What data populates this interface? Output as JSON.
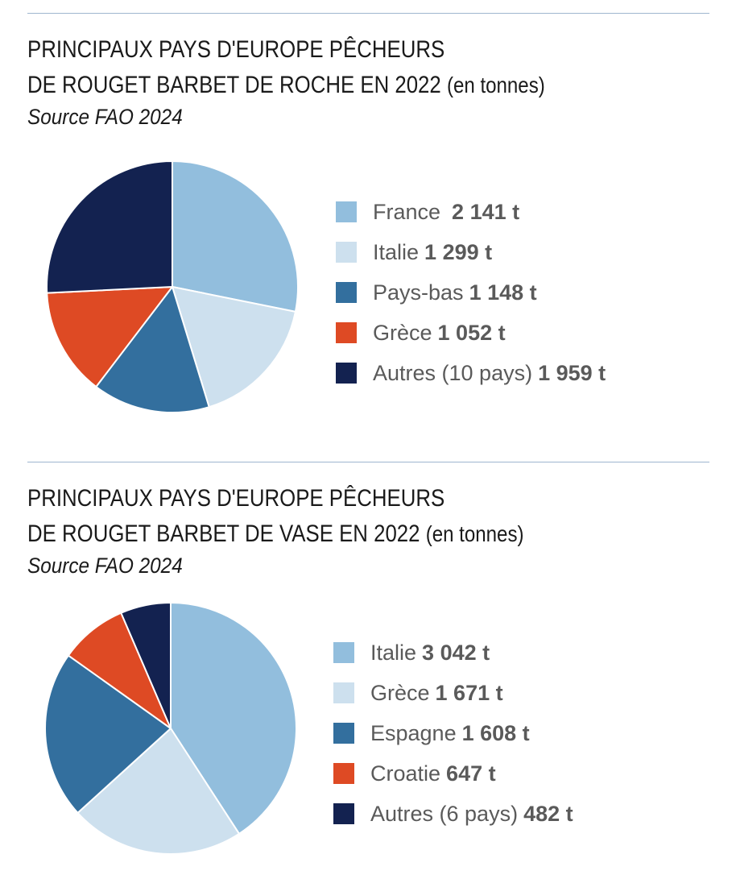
{
  "charts": [
    {
      "title_line1": "PRINCIPAUX PAYS D'EUROPE PÊCHEURS",
      "title_line2": "DE ROUGET BARBET DE ROCHE EN 2022",
      "title_unit": "(en tonnes)",
      "source": "Source FAO 2024",
      "legend": [
        {
          "label": "France",
          "value": "2 141 t"
        },
        {
          "label": "Italie",
          "value": "1 299 t"
        },
        {
          "label": "Pays-bas",
          "value": "1 148 t"
        },
        {
          "label": "Grèce",
          "value": "1 052 t"
        },
        {
          "label": "Autres (10 pays)",
          "value": "1 959 t"
        }
      ]
    },
    {
      "title_line1": "PRINCIPAUX PAYS D'EUROPE PÊCHEURS",
      "title_line2": "DE ROUGET BARBET DE VASE EN 2022",
      "title_unit": "(en tonnes)",
      "source": "Source FAO 2024",
      "legend": [
        {
          "label": "Italie",
          "value": "3 042 t"
        },
        {
          "label": "Grèce",
          "value": "1 671 t"
        },
        {
          "label": "Espagne",
          "value": "1 608 t"
        },
        {
          "label": "Croatie",
          "value": "647 t"
        },
        {
          "label": "Autres (6 pays)",
          "value": "482 t"
        }
      ]
    }
  ],
  "chart_data": [
    {
      "type": "pie",
      "title": "PRINCIPAUX PAYS D'EUROPE PÊCHEURS DE ROUGET BARBET DE ROCHE EN 2022 (en tonnes)",
      "unit": "t",
      "categories": [
        "France",
        "Italie",
        "Pays-bas",
        "Grèce",
        "Autres (10 pays)"
      ],
      "values": [
        2141,
        1299,
        1148,
        1052,
        1959
      ],
      "colors": [
        "#92bedd",
        "#cde0ee",
        "#336f9e",
        "#de4a24",
        "#132250"
      ],
      "legend_position": "right"
    },
    {
      "type": "pie",
      "title": "PRINCIPAUX PAYS D'EUROPE PÊCHEURS DE ROUGET BARBET DE VASE EN 2022 (en tonnes)",
      "unit": "t",
      "categories": [
        "Italie",
        "Grèce",
        "Espagne",
        "Croatie",
        "Autres (6 pays)"
      ],
      "values": [
        3042,
        1671,
        1608,
        647,
        482
      ],
      "colors": [
        "#92bedd",
        "#cde0ee",
        "#336f9e",
        "#de4a24",
        "#132250"
      ],
      "legend_position": "right"
    }
  ]
}
